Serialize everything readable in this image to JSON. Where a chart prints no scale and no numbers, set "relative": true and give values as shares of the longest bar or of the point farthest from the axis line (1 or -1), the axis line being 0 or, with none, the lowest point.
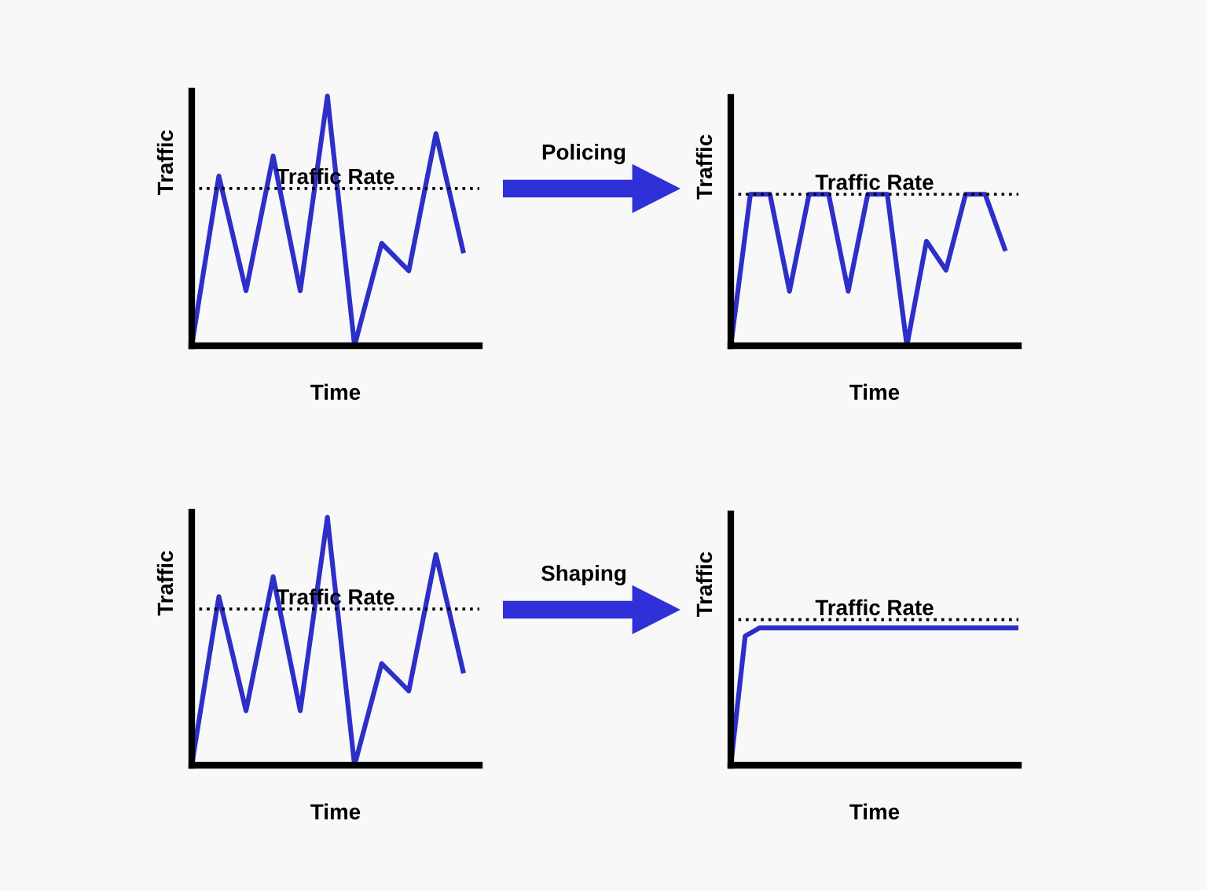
{
  "chart_data": [
    {
      "type": "line",
      "relative": true,
      "xlabel": "Time",
      "ylabel": "Traffic",
      "annotations": [
        "Policing"
      ],
      "categories": [
        null,
        null,
        null,
        null,
        null,
        null,
        null,
        null,
        null,
        null,
        null
      ],
      "series": [
        {
          "color": "#2e2ec8",
          "values": [
            0.0,
            0.68,
            0.22,
            0.76,
            0.22,
            1.0,
            0.0,
            0.41,
            0.3,
            0.85,
            0.38
          ]
        }
      ],
      "ref_lines": [
        {
          "axis": "y",
          "value": 0.63,
          "label": "Traffic Rate",
          "color": "#000000",
          "line_style": "dotted"
        }
      ]
    },
    {
      "type": "line",
      "relative": true,
      "xlabel": "Time",
      "ylabel": "Traffic",
      "categories": [
        null,
        null,
        null,
        null,
        null,
        null,
        null,
        null,
        null,
        null,
        null,
        null,
        null,
        null,
        null
      ],
      "series": [
        {
          "color": "#2e2ec8",
          "values": [
            0.0,
            1.0,
            1.0,
            0.36,
            1.0,
            1.0,
            0.36,
            1.0,
            1.0,
            0.0,
            0.69,
            0.5,
            1.0,
            1.0,
            0.64
          ]
        }
      ],
      "ref_lines": [
        {
          "axis": "y",
          "value": 1.0,
          "label": "Traffic Rate",
          "color": "#000000",
          "line_style": "dotted"
        }
      ]
    },
    {
      "type": "line",
      "relative": true,
      "xlabel": "Time",
      "ylabel": "Traffic",
      "annotations": [
        "Shaping"
      ],
      "categories": [
        null,
        null,
        null,
        null,
        null,
        null,
        null,
        null,
        null,
        null,
        null
      ],
      "series": [
        {
          "color": "#2e2ec8",
          "values": [
            0.0,
            0.68,
            0.22,
            0.76,
            0.22,
            1.0,
            0.0,
            0.41,
            0.3,
            0.85,
            0.38
          ]
        }
      ],
      "ref_lines": [
        {
          "axis": "y",
          "value": 0.63,
          "label": "Traffic Rate",
          "color": "#000000",
          "line_style": "dotted"
        }
      ]
    },
    {
      "type": "line",
      "relative": true,
      "xlabel": "Time",
      "ylabel": "Traffic",
      "categories": [
        null,
        null,
        null,
        null,
        null,
        null,
        null,
        null,
        null,
        null,
        null,
        null,
        null,
        null,
        null,
        null,
        null,
        null,
        null,
        null,
        null
      ],
      "series": [
        {
          "color": "#2e2ec8",
          "values": [
            0.0,
            0.94,
            1.0,
            1.0,
            1.0,
            1.0,
            1.0,
            1.0,
            1.0,
            1.0,
            1.0,
            1.0,
            1.0,
            1.0,
            1.0,
            1.0,
            1.0,
            1.0,
            1.0,
            1.0,
            1.0
          ]
        }
      ],
      "ref_lines": [
        {
          "axis": "y",
          "value": 1.06,
          "label": "Traffic Rate",
          "color": "#000000",
          "line_style": "dotted"
        }
      ]
    }
  ]
}
